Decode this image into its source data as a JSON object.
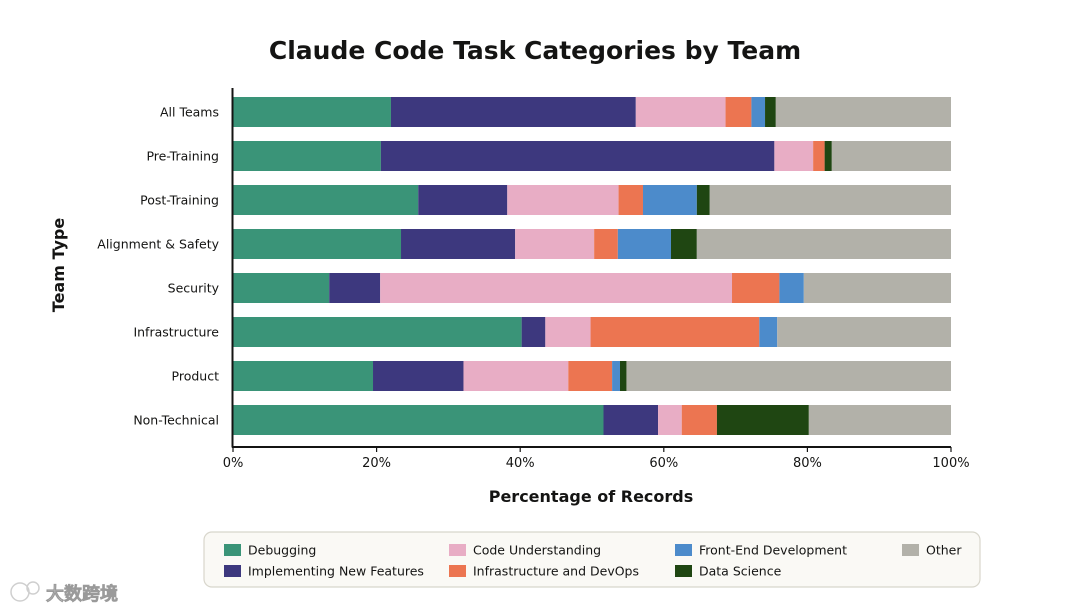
{
  "chart_data": {
    "type": "bar",
    "orientation": "horizontal",
    "stacked": true,
    "title": "Claude Code Task Categories by Team",
    "xlabel": "Percentage of Records",
    "ylabel": "Team Type",
    "xlim": [
      0,
      100
    ],
    "xticks": [
      "0%",
      "20%",
      "40%",
      "60%",
      "80%",
      "100%"
    ],
    "xtick_values": [
      0,
      20,
      40,
      60,
      80,
      100
    ],
    "grid": false,
    "legend_position": "bottom",
    "categories": [
      "All Teams",
      "Pre-Training",
      "Post-Training",
      "Alignment & Safety",
      "Security",
      "Infrastructure",
      "Product",
      "Non-Technical"
    ],
    "series": [
      {
        "name": "Debugging",
        "color": "#3a9478",
        "values": [
          22.0,
          20.6,
          25.8,
          23.4,
          13.4,
          40.2,
          19.5,
          51.6
        ]
      },
      {
        "name": "Implementing New Features",
        "color": "#3d387e",
        "values": [
          34.1,
          54.8,
          12.4,
          15.9,
          7.1,
          3.3,
          12.6,
          7.6
        ]
      },
      {
        "name": "Code Understanding",
        "color": "#e8adc5",
        "values": [
          12.5,
          5.4,
          15.5,
          11.0,
          49.0,
          6.3,
          14.6,
          3.3
        ]
      },
      {
        "name": "Infrastructure and DevOps",
        "color": "#ec7551",
        "values": [
          3.6,
          1.6,
          3.4,
          3.3,
          6.6,
          23.5,
          6.1,
          4.9
        ]
      },
      {
        "name": "Front-End Development",
        "color": "#4c8bcb",
        "values": [
          1.9,
          0.0,
          7.5,
          7.4,
          3.4,
          2.5,
          1.1,
          0.0
        ]
      },
      {
        "name": "Data Science",
        "color": "#1f4612",
        "values": [
          1.5,
          1.0,
          1.8,
          3.6,
          0.0,
          0.0,
          0.9,
          12.8
        ]
      },
      {
        "name": "Other",
        "color": "#b2b1a9",
        "values": [
          24.4,
          16.6,
          33.6,
          35.4,
          20.5,
          24.2,
          45.2,
          19.8
        ]
      }
    ]
  },
  "watermark": {
    "text": "大数跨境"
  }
}
